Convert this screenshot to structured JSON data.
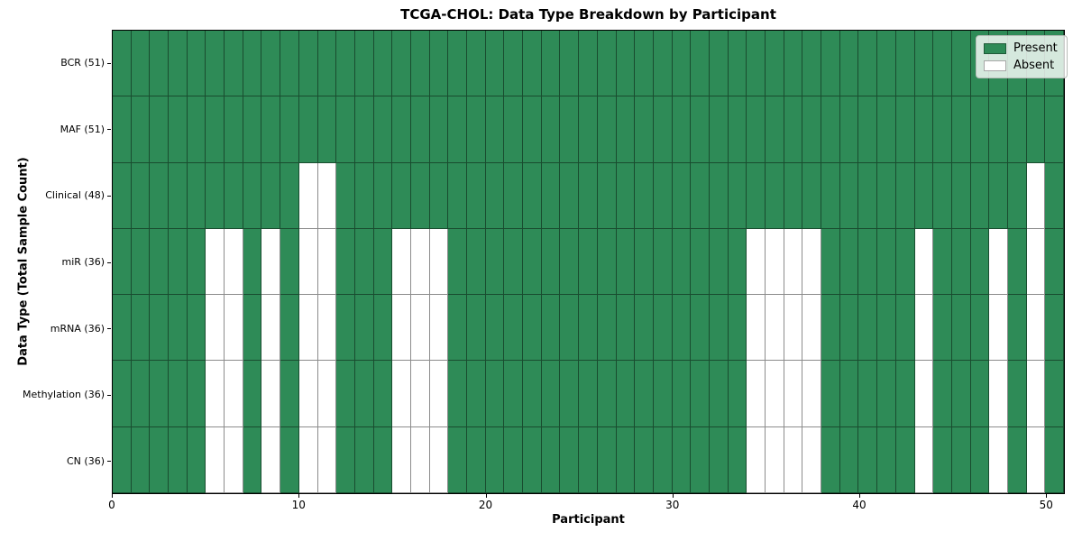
{
  "chart_data": {
    "type": "heatmap",
    "title": "TCGA-CHOL: Data Type Breakdown by Participant",
    "xlabel": "Participant",
    "ylabel": "Data Type (Total Sample Count)",
    "n_participants": 51,
    "x_ticks": [
      0,
      10,
      20,
      30,
      40,
      50
    ],
    "x_range": [
      0,
      51
    ],
    "grid": true,
    "legend": {
      "position": "upper right",
      "present_label": "Present",
      "absent_label": "Absent"
    },
    "colors": {
      "present": "#2e8b57",
      "absent": "#ffffff",
      "grid_line": "rgba(0,0,0,0.45)"
    },
    "rows": [
      {
        "label": "BCR (51)",
        "total": 51,
        "absent": []
      },
      {
        "label": "MAF (51)",
        "total": 51,
        "absent": []
      },
      {
        "label": "Clinical (48)",
        "total": 48,
        "absent": [
          10,
          11,
          49
        ]
      },
      {
        "label": "miR (36)",
        "total": 36,
        "absent": [
          5,
          6,
          8,
          10,
          11,
          15,
          16,
          17,
          34,
          35,
          36,
          37,
          43,
          47,
          49
        ]
      },
      {
        "label": "mRNA (36)",
        "total": 36,
        "absent": [
          5,
          6,
          8,
          10,
          11,
          15,
          16,
          17,
          34,
          35,
          36,
          37,
          43,
          47,
          49
        ]
      },
      {
        "label": "Methylation (36)",
        "total": 36,
        "absent": [
          5,
          6,
          8,
          10,
          11,
          15,
          16,
          17,
          34,
          35,
          36,
          37,
          43,
          47,
          49
        ]
      },
      {
        "label": "CN (36)",
        "total": 36,
        "absent": [
          5,
          6,
          8,
          10,
          11,
          15,
          16,
          17,
          34,
          35,
          36,
          37,
          43,
          47,
          49
        ]
      }
    ]
  }
}
